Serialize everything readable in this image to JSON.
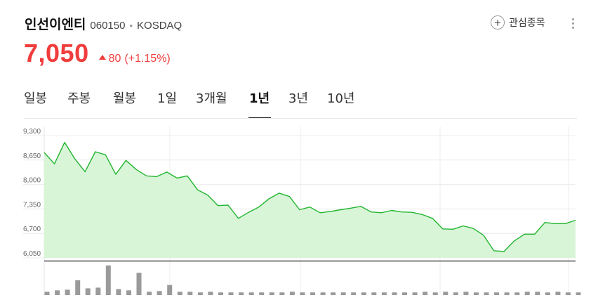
{
  "header": {
    "name": "인선이엔티",
    "code": "060150",
    "separator": "•",
    "market": "KOSDAQ",
    "watch_label": "관심종목"
  },
  "price": {
    "current": "7,050",
    "change": "80",
    "change_pct": "(+1.15%)",
    "up_color": "#f03c3c"
  },
  "tabs": [
    {
      "label": "일봉",
      "active": false
    },
    {
      "label": "주봉",
      "active": false
    },
    {
      "label": "월봉",
      "active": false
    },
    {
      "label": "1일",
      "active": false
    },
    {
      "label": "3개월",
      "active": false
    },
    {
      "label": "1년",
      "active": true
    },
    {
      "label": "3년",
      "active": false
    },
    {
      "label": "10년",
      "active": false
    }
  ],
  "chart_data": {
    "type": "area",
    "ylim": [
      6050,
      9300
    ],
    "y_ticks": [
      "9,300",
      "8,650",
      "8,000",
      "7,350",
      "6,700",
      "6,050"
    ],
    "grid": true,
    "line_color": "#22b530",
    "fill_color": "#d8f5d8",
    "values": [
      8850,
      8550,
      9120,
      8680,
      8340,
      8870,
      8790,
      8270,
      8640,
      8400,
      8230,
      8210,
      8330,
      8170,
      8230,
      7860,
      7720,
      7440,
      7450,
      7100,
      7260,
      7400,
      7620,
      7770,
      7680,
      7330,
      7400,
      7250,
      7280,
      7330,
      7370,
      7420,
      7270,
      7250,
      7310,
      7270,
      7260,
      7200,
      7100,
      6820,
      6810,
      6900,
      6830,
      6650,
      6240,
      6220,
      6500,
      6680,
      6680,
      6990,
      6960,
      6960,
      7050
    ],
    "volume": [
      0.05,
      0.07,
      0.08,
      0.22,
      0.1,
      0.11,
      0.44,
      0.09,
      0.07,
      0.33,
      0.05,
      0.06,
      0.15,
      0.05,
      0.05,
      0.04,
      0.05,
      0.04,
      0.04,
      0.04,
      0.04,
      0.04,
      0.04,
      0.04,
      0.05,
      0.04,
      0.04,
      0.04,
      0.04,
      0.04,
      0.04,
      0.04,
      0.04,
      0.04,
      0.04,
      0.04,
      0.04,
      0.05,
      0.04,
      0.05,
      0.04,
      0.05,
      0.04,
      0.04,
      0.04,
      0.04,
      0.04,
      0.05,
      0.05,
      0.04,
      0.05,
      0.04,
      0.04
    ],
    "volume_color": "#9a9a9a"
  }
}
